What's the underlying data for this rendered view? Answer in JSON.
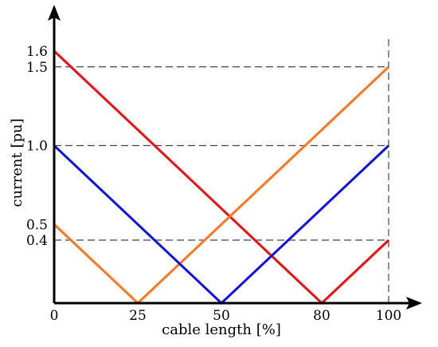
{
  "chart_data": {
    "type": "line",
    "xlabel": "cable length [%]",
    "ylabel": "current [pu]",
    "xlim": [
      0,
      100
    ],
    "ylim": [
      0,
      1.6
    ],
    "x_ticks": [
      {
        "value": 0,
        "label": "0"
      },
      {
        "value": 25,
        "label": "25"
      },
      {
        "value": 50,
        "label": "50"
      },
      {
        "value": 80,
        "label": "80"
      },
      {
        "value": 100,
        "label": "100"
      }
    ],
    "y_ticks": [
      {
        "value": 1.6,
        "label": "1.6"
      },
      {
        "value": 1.5,
        "label": "1.5"
      },
      {
        "value": 1.0,
        "label": "1.0"
      },
      {
        "value": 0.5,
        "label": "0.5"
      },
      {
        "value": 0.4,
        "label": "0.4"
      }
    ],
    "reference_lines": {
      "horizontal": [
        1.5,
        1.0,
        0.4
      ],
      "vertical": [
        100
      ]
    },
    "series": [
      {
        "color": "#ee1111",
        "x": [
          0,
          80,
          100
        ],
        "y": [
          1.6,
          0,
          0.4
        ]
      },
      {
        "color": "#ff7722",
        "x": [
          0,
          25,
          100
        ],
        "y": [
          0.5,
          0,
          1.5
        ]
      },
      {
        "color": "#1111ee",
        "x": [
          0,
          50,
          100
        ],
        "y": [
          1.0,
          0,
          1.0
        ]
      }
    ],
    "grid": false,
    "legend": "none"
  }
}
